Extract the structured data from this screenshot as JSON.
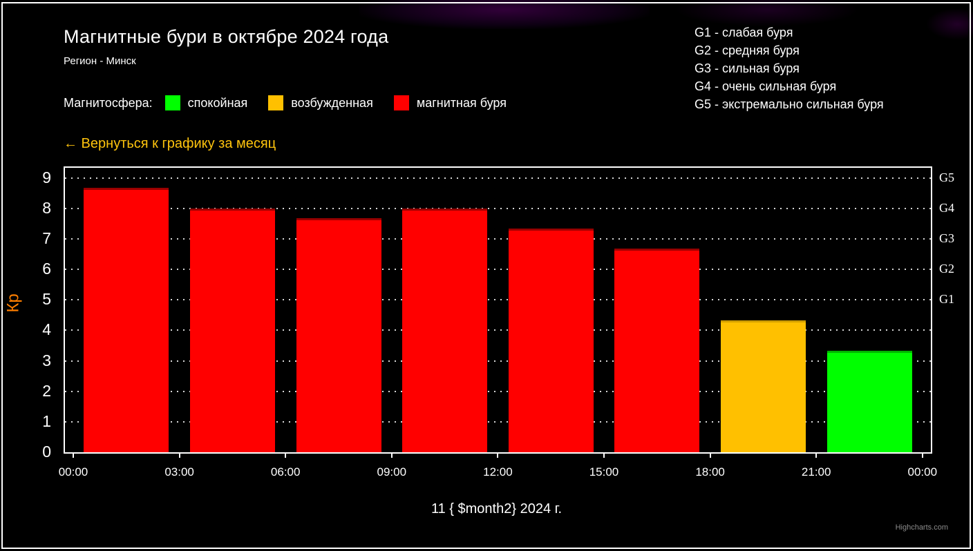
{
  "page": {
    "title": "Магнитные бури в октябре 2024 года",
    "subtitle": "Регион - Минск",
    "back_link": "← Вернуться к графику за месяц",
    "credit": "Highcharts.com"
  },
  "legend": {
    "label": "Магнитосфера:",
    "items": [
      {
        "label": "спокойная",
        "color": "#00ff00"
      },
      {
        "label": "возбужденная",
        "color": "#ffc000"
      },
      {
        "label": "магнитная буря",
        "color": "#ff0000"
      }
    ]
  },
  "storm_scale": {
    "items": [
      "G1 - слабая буря",
      "G2 - средняя буря",
      "G3 - сильная буря",
      "G4 - очень сильная буря",
      "G5 - экстремально сильная буря"
    ]
  },
  "chart_data": {
    "type": "bar",
    "title": "Магнитные бури в октябре 2024 года",
    "subtitle": "Регион - Минск",
    "xlabel": "11 { $month2} 2024 г.",
    "ylabel": "Кр",
    "ylim": [
      0,
      9.33
    ],
    "y_ticks": [
      0,
      1,
      2,
      3,
      4,
      5,
      6,
      7,
      8,
      9
    ],
    "grid": "dotted horizontal lines at each Kp integer",
    "legend_position": "top-left custom row",
    "x_tick_labels": [
      "00:00",
      "03:00",
      "06:00",
      "09:00",
      "12:00",
      "15:00",
      "18:00",
      "21:00",
      "00:00"
    ],
    "categories": [
      "00:00-03:00",
      "03:00-06:00",
      "06:00-09:00",
      "09:00-12:00",
      "12:00-15:00",
      "15:00-18:00",
      "18:00-21:00",
      "21:00-00:00"
    ],
    "values": [
      8.67,
      8,
      7.67,
      8,
      7.33,
      6.67,
      4.33,
      3.33
    ],
    "point_states": [
      "магнитная буря",
      "магнитная буря",
      "магнитная буря",
      "магнитная буря",
      "магнитная буря",
      "магнитная буря",
      "возбужденная",
      "спокойная"
    ],
    "point_colors": [
      "#ff0000",
      "#ff0000",
      "#ff0000",
      "#ff0000",
      "#ff0000",
      "#ff0000",
      "#ffc000",
      "#00ff00"
    ],
    "point_border_colors": [
      "#990000",
      "#990000",
      "#990000",
      "#990000",
      "#990000",
      "#990000",
      "#d29e00",
      "#00b400"
    ],
    "right_axis_labels": [
      {
        "label": "G1",
        "value": 5
      },
      {
        "label": "G2",
        "value": 6
      },
      {
        "label": "G3",
        "value": 7
      },
      {
        "label": "G4",
        "value": 8
      },
      {
        "label": "G5",
        "value": 9
      }
    ]
  }
}
